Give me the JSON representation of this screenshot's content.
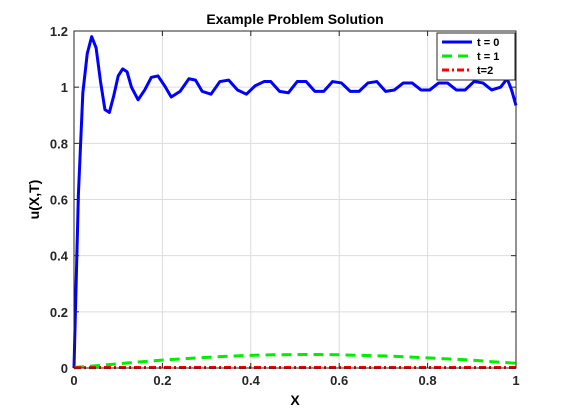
{
  "chart_data": {
    "type": "line",
    "title": "Example Problem Solution",
    "xlabel": "X",
    "ylabel": "u(X,T)",
    "xlim": [
      0,
      1
    ],
    "ylim": [
      0,
      1.2
    ],
    "xticks": [
      "0",
      "0.2",
      "0.4",
      "0.6",
      "0.8",
      "1"
    ],
    "xtick_values": [
      0,
      0.2,
      0.4,
      0.6,
      0.8,
      1
    ],
    "yticks": [
      "0",
      "0.2",
      "0.4",
      "0.6",
      "0.8",
      "1",
      "1.2"
    ],
    "ytick_values": [
      0,
      0.2,
      0.4,
      0.6,
      0.8,
      1,
      1.2
    ],
    "grid": true,
    "legend_position": "top-right",
    "series": [
      {
        "name": "t = 0",
        "color": "#0000ff",
        "style": "solid",
        "x": [
          0,
          0.01,
          0.02,
          0.03,
          0.04,
          0.05,
          0.06,
          0.07,
          0.08,
          0.09,
          0.1,
          0.11,
          0.12,
          0.13,
          0.145,
          0.16,
          0.175,
          0.19,
          0.205,
          0.22,
          0.24,
          0.26,
          0.275,
          0.29,
          0.31,
          0.33,
          0.35,
          0.37,
          0.39,
          0.41,
          0.43,
          0.445,
          0.465,
          0.485,
          0.505,
          0.525,
          0.545,
          0.565,
          0.585,
          0.605,
          0.625,
          0.645,
          0.665,
          0.685,
          0.705,
          0.725,
          0.745,
          0.765,
          0.785,
          0.805,
          0.825,
          0.845,
          0.865,
          0.885,
          0.905,
          0.925,
          0.945,
          0.965,
          0.98,
          0.99,
          1.0
        ],
        "y": [
          0,
          0.62,
          0.98,
          1.12,
          1.18,
          1.14,
          1.02,
          0.92,
          0.91,
          0.97,
          1.04,
          1.065,
          1.055,
          1.0,
          0.955,
          0.99,
          1.035,
          1.04,
          1.005,
          0.965,
          0.985,
          1.03,
          1.025,
          0.985,
          0.975,
          1.02,
          1.025,
          0.99,
          0.975,
          1.005,
          1.02,
          1.02,
          0.985,
          0.98,
          1.02,
          1.02,
          0.985,
          0.985,
          1.02,
          1.015,
          0.985,
          0.985,
          1.015,
          1.02,
          0.985,
          0.99,
          1.015,
          1.015,
          0.99,
          0.99,
          1.015,
          1.015,
          0.99,
          0.99,
          1.02,
          1.015,
          0.99,
          1.0,
          1.03,
          0.99,
          0.935
        ]
      },
      {
        "name": "t = 1",
        "color": "#00ee00",
        "style": "dashed",
        "x": [
          0,
          0.05,
          0.1,
          0.15,
          0.2,
          0.25,
          0.3,
          0.35,
          0.4,
          0.45,
          0.5,
          0.55,
          0.6,
          0.65,
          0.7,
          0.75,
          0.8,
          0.85,
          0.9,
          0.95,
          1.0
        ],
        "y": [
          0.002,
          0.008,
          0.015,
          0.022,
          0.028,
          0.033,
          0.038,
          0.042,
          0.045,
          0.047,
          0.048,
          0.048,
          0.047,
          0.045,
          0.043,
          0.04,
          0.036,
          0.032,
          0.028,
          0.022,
          0.017
        ]
      },
      {
        "name": "t=2",
        "color": "#ff0000",
        "style": "dash-dot",
        "x": [
          0,
          0.1,
          0.2,
          0.3,
          0.4,
          0.5,
          0.6,
          0.7,
          0.8,
          0.9,
          1.0
        ],
        "y": [
          0.001,
          0.002,
          0.002,
          0.002,
          0.002,
          0.002,
          0.002,
          0.002,
          0.002,
          0.002,
          0.002
        ]
      }
    ]
  }
}
